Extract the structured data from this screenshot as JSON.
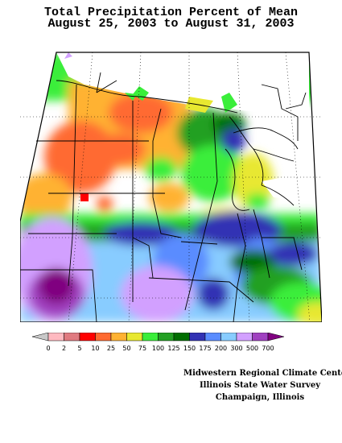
{
  "title": {
    "line1": "Total Precipitation Percent of Mean",
    "line2": "August 25, 2003 to August 31, 2003"
  },
  "legend": {
    "labels": [
      "0",
      "2",
      "5",
      "10",
      "25",
      "50",
      "75",
      "100",
      "125",
      "150",
      "175",
      "200",
      "300",
      "500",
      "700"
    ],
    "colors": [
      "#c8c8c8",
      "#ffb9c0",
      "#e07a80",
      "#ff0000",
      "#ff6a30",
      "#ffb232",
      "#e8e830",
      "#3aee3a",
      "#23a023",
      "#006e00",
      "#3232b4",
      "#5a8cff",
      "#88ccff",
      "#d2a0ff",
      "#a040c0",
      "#800080"
    ]
  },
  "credits": {
    "line1": "Midwestern Regional Climate Center",
    "line2": "Illinois State Water Survey",
    "line3": "Champaign, Illinois"
  }
}
